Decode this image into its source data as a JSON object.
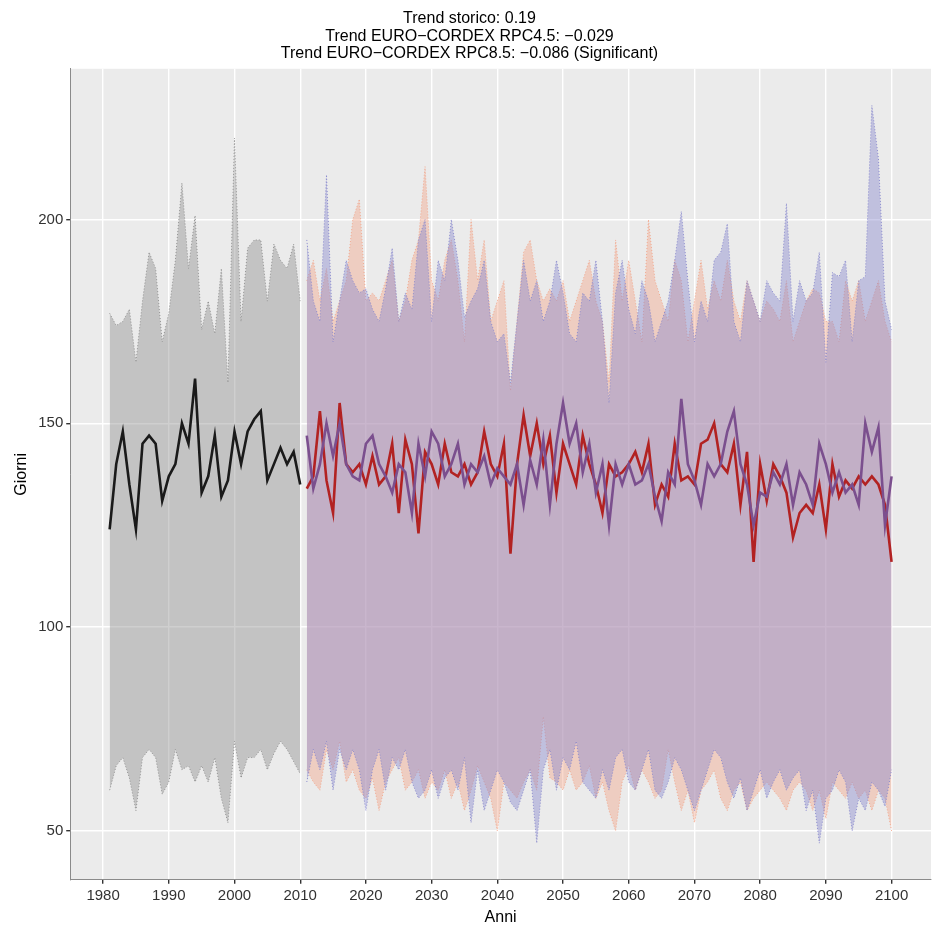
{
  "chart_data": {
    "type": "line",
    "title": [
      "Trend storico: 0.19",
      "Trend EURO−CORDEX RPC4.5: −0.029",
      "Trend EURO−CORDEX RPC8.5: −0.086 (Significant)"
    ],
    "xlabel": "Anni",
    "ylabel": "Giorni",
    "xlim": [
      1975,
      2106
    ],
    "xticks": [
      1980,
      1990,
      2000,
      2010,
      2020,
      2030,
      2040,
      2050,
      2060,
      2070,
      2080,
      2090,
      2100
    ],
    "ylim": [
      38,
      237
    ],
    "yticks": [
      50,
      100,
      150,
      200
    ],
    "grid": true,
    "series": [
      {
        "type": "area",
        "color": "#8c8c8c",
        "x": [
          1981,
          1982,
          1983,
          1984,
          1985,
          1986,
          1987,
          1988,
          1989,
          1990,
          1991,
          1992,
          1993,
          1994,
          1995,
          1996,
          1997,
          1998,
          1999,
          2000,
          2001,
          2002,
          2003,
          2004,
          2005,
          2006,
          2007,
          2008,
          2009,
          2010
        ],
        "lower": [
          60,
          66,
          68,
          63,
          55,
          68,
          70,
          68,
          59,
          62,
          70,
          65,
          66,
          62,
          66,
          62,
          68,
          58,
          52,
          72,
          63,
          68,
          68,
          70,
          65,
          69,
          72,
          70,
          67,
          64
        ],
        "upper": [
          177,
          174,
          175,
          178,
          165,
          180,
          192,
          188,
          170,
          177,
          190,
          209,
          188,
          201,
          173,
          180,
          172,
          188,
          160,
          220,
          175,
          193,
          195,
          195,
          180,
          194,
          190,
          188,
          194,
          180
        ]
      },
      {
        "type": "area",
        "color": "#8585cc",
        "x": [
          2011,
          2012,
          2013,
          2014,
          2015,
          2016,
          2017,
          2018,
          2019,
          2020,
          2021,
          2022,
          2023,
          2024,
          2025,
          2026,
          2027,
          2028,
          2029,
          2030,
          2031,
          2032,
          2033,
          2034,
          2035,
          2036,
          2037,
          2038,
          2039,
          2040,
          2041,
          2042,
          2043,
          2044,
          2045,
          2046,
          2047,
          2048,
          2049,
          2050,
          2051,
          2052,
          2053,
          2054,
          2055,
          2056,
          2057,
          2058,
          2059,
          2060,
          2061,
          2062,
          2063,
          2064,
          2065,
          2066,
          2067,
          2068,
          2069,
          2070,
          2071,
          2072,
          2073,
          2074,
          2075,
          2076,
          2077,
          2078,
          2079,
          2080,
          2081,
          2082,
          2083,
          2084,
          2085,
          2086,
          2087,
          2088,
          2089,
          2090,
          2091,
          2092,
          2093,
          2094,
          2095,
          2096,
          2097,
          2098,
          2099,
          2100
        ],
        "lower": [
          62,
          70,
          65,
          72,
          60,
          70,
          65,
          70,
          65,
          55,
          65,
          70,
          60,
          68,
          65,
          70,
          62,
          58,
          60,
          65,
          58,
          63,
          65,
          60,
          68,
          52,
          65,
          55,
          60,
          65,
          62,
          57,
          55,
          60,
          65,
          47,
          65,
          70,
          60,
          68,
          65,
          72,
          62,
          60,
          58,
          65,
          60,
          68,
          70,
          62,
          60,
          65,
          70,
          60,
          58,
          62,
          68,
          65,
          60,
          55,
          60,
          65,
          70,
          68,
          62,
          58,
          63,
          55,
          60,
          65,
          58,
          62,
          65,
          60,
          63,
          65,
          55,
          60,
          47,
          58,
          60,
          65,
          62,
          50,
          58,
          55,
          62,
          60,
          56,
          65
        ],
        "upper": [
          195,
          180,
          175,
          211,
          170,
          180,
          190,
          185,
          182,
          183,
          178,
          175,
          183,
          193,
          175,
          182,
          178,
          195,
          200,
          175,
          190,
          185,
          200,
          190,
          176,
          180,
          183,
          190,
          175,
          170,
          172,
          160,
          175,
          190,
          180,
          185,
          175,
          180,
          190,
          182,
          172,
          170,
          182,
          180,
          190,
          175,
          155,
          182,
          190,
          178,
          172,
          185,
          180,
          170,
          175,
          180,
          190,
          202,
          185,
          170,
          180,
          175,
          190,
          192,
          199,
          175,
          170,
          185,
          180,
          175,
          185,
          182,
          180,
          204,
          175,
          185,
          180,
          182,
          192,
          165,
          187,
          186,
          190,
          170,
          185,
          186,
          228,
          215,
          180,
          173
        ]
      },
      {
        "type": "area",
        "color": "#f2a488",
        "x": [
          2011,
          2012,
          2013,
          2014,
          2015,
          2016,
          2017,
          2018,
          2019,
          2020,
          2021,
          2022,
          2023,
          2024,
          2025,
          2026,
          2027,
          2028,
          2029,
          2030,
          2031,
          2032,
          2033,
          2034,
          2035,
          2036,
          2037,
          2038,
          2039,
          2040,
          2041,
          2042,
          2043,
          2044,
          2045,
          2046,
          2047,
          2048,
          2049,
          2050,
          2051,
          2052,
          2053,
          2054,
          2055,
          2056,
          2057,
          2058,
          2059,
          2060,
          2061,
          2062,
          2063,
          2064,
          2065,
          2066,
          2067,
          2068,
          2069,
          2070,
          2071,
          2072,
          2073,
          2074,
          2075,
          2076,
          2077,
          2078,
          2079,
          2080,
          2081,
          2082,
          2083,
          2084,
          2085,
          2086,
          2087,
          2088,
          2089,
          2090,
          2091,
          2092,
          2093,
          2094,
          2095,
          2096,
          2097,
          2098,
          2099,
          2100
        ],
        "lower": [
          65,
          62,
          60,
          70,
          65,
          72,
          62,
          65,
          60,
          58,
          63,
          55,
          62,
          65,
          68,
          60,
          62,
          65,
          58,
          62,
          60,
          65,
          58,
          62,
          55,
          60,
          66,
          62,
          58,
          50,
          62,
          60,
          58,
          62,
          65,
          60,
          78,
          63,
          62,
          60,
          65,
          60,
          62,
          66,
          58,
          62,
          55,
          50,
          62,
          66,
          60,
          65,
          62,
          58,
          60,
          70,
          62,
          55,
          60,
          52,
          60,
          62,
          65,
          58,
          55,
          60,
          62,
          55,
          58,
          60,
          62,
          60,
          58,
          55,
          60,
          62,
          60,
          55,
          60,
          53,
          62,
          60,
          58,
          62,
          58,
          60,
          55,
          60,
          58,
          50
        ],
        "upper": [
          185,
          190,
          180,
          188,
          175,
          180,
          185,
          200,
          205,
          180,
          182,
          180,
          185,
          190,
          175,
          180,
          190,
          195,
          213,
          185,
          180,
          190,
          195,
          185,
          170,
          200,
          185,
          195,
          175,
          180,
          185,
          158,
          175,
          192,
          195,
          185,
          180,
          183,
          180,
          185,
          175,
          180,
          185,
          190,
          180,
          175,
          160,
          195,
          180,
          190,
          180,
          170,
          200,
          185,
          180,
          175,
          190,
          185,
          170,
          180,
          190,
          178,
          185,
          180,
          190,
          180,
          175,
          185,
          180,
          175,
          180,
          178,
          175,
          185,
          170,
          175,
          180,
          183,
          182,
          175,
          175,
          170,
          185,
          180,
          185,
          175,
          180,
          185,
          175,
          170
        ]
      },
      {
        "type": "line",
        "color": "#1a1a1a",
        "x": [
          1981,
          1982,
          1983,
          1984,
          1985,
          1986,
          1987,
          1988,
          1989,
          1990,
          1991,
          1992,
          1993,
          1994,
          1995,
          1996,
          1997,
          1998,
          1999,
          2000,
          2001,
          2002,
          2003,
          2004,
          2005,
          2006,
          2007,
          2008,
          2009,
          2010
        ],
        "values": [
          124,
          140,
          148,
          135,
          124,
          145,
          147,
          145,
          131,
          137,
          140,
          150,
          145,
          161,
          133,
          137,
          147,
          132,
          136,
          148,
          140,
          148,
          151,
          153,
          136,
          140,
          144,
          140,
          143,
          135
        ]
      },
      {
        "type": "line",
        "color": "#7b4f8e",
        "x": [
          2011,
          2012,
          2013,
          2014,
          2015,
          2016,
          2017,
          2018,
          2019,
          2020,
          2021,
          2022,
          2023,
          2024,
          2025,
          2026,
          2027,
          2028,
          2029,
          2030,
          2031,
          2032,
          2033,
          2034,
          2035,
          2036,
          2037,
          2038,
          2039,
          2040,
          2041,
          2042,
          2043,
          2044,
          2045,
          2046,
          2047,
          2048,
          2049,
          2050,
          2051,
          2052,
          2053,
          2054,
          2055,
          2056,
          2057,
          2058,
          2059,
          2060,
          2061,
          2062,
          2063,
          2064,
          2065,
          2066,
          2067,
          2068,
          2069,
          2070,
          2071,
          2072,
          2073,
          2074,
          2075,
          2076,
          2077,
          2078,
          2079,
          2080,
          2081,
          2082,
          2083,
          2084,
          2085,
          2086,
          2087,
          2088,
          2089,
          2090,
          2091,
          2092,
          2093,
          2094,
          2095,
          2096,
          2097,
          2098,
          2099,
          2100
        ],
        "values": [
          147,
          134,
          140,
          150,
          142,
          150,
          140,
          137,
          136,
          145,
          147,
          140,
          137,
          133,
          140,
          138,
          128,
          145,
          137,
          148,
          145,
          137,
          140,
          145,
          135,
          140,
          138,
          142,
          135,
          139,
          137,
          135,
          140,
          130,
          141,
          135,
          146,
          130,
          145,
          155,
          145,
          150,
          138,
          145,
          133,
          140,
          125,
          140,
          135,
          140,
          135,
          136,
          140,
          132,
          126,
          138,
          135,
          156,
          140,
          136,
          130,
          140,
          137,
          140,
          148,
          153,
          140,
          135,
          125,
          133,
          132,
          138,
          135,
          140,
          130,
          138,
          135,
          130,
          145,
          140,
          133,
          138,
          133,
          135,
          130,
          150,
          143,
          149,
          125,
          137
        ]
      },
      {
        "type": "line",
        "color": "#b22222",
        "x": [
          2011,
          2012,
          2013,
          2014,
          2015,
          2016,
          2017,
          2018,
          2019,
          2020,
          2021,
          2022,
          2023,
          2024,
          2025,
          2026,
          2027,
          2028,
          2029,
          2030,
          2031,
          2032,
          2033,
          2034,
          2035,
          2036,
          2037,
          2038,
          2039,
          2040,
          2041,
          2042,
          2043,
          2044,
          2045,
          2046,
          2047,
          2048,
          2049,
          2050,
          2051,
          2052,
          2053,
          2054,
          2055,
          2056,
          2057,
          2058,
          2059,
          2060,
          2061,
          2062,
          2063,
          2064,
          2065,
          2066,
          2067,
          2068,
          2069,
          2070,
          2071,
          2072,
          2073,
          2074,
          2075,
          2076,
          2077,
          2078,
          2079,
          2080,
          2081,
          2082,
          2083,
          2084,
          2085,
          2086,
          2087,
          2088,
          2089,
          2090,
          2091,
          2092,
          2093,
          2094,
          2095,
          2096,
          2097,
          2098,
          2099,
          2100
        ],
        "values": [
          134,
          137,
          153,
          136,
          128,
          155,
          140,
          138,
          140,
          135,
          142,
          135,
          137,
          145,
          128,
          146,
          140,
          123,
          143,
          140,
          135,
          145,
          138,
          137,
          140,
          135,
          138,
          148,
          140,
          137,
          145,
          118,
          140,
          152,
          142,
          150,
          140,
          147,
          133,
          145,
          140,
          135,
          147,
          140,
          135,
          128,
          140,
          137,
          138,
          140,
          143,
          138,
          145,
          130,
          135,
          132,
          145,
          136,
          137,
          135,
          145,
          146,
          150,
          140,
          138,
          145,
          130,
          143,
          116,
          140,
          131,
          140,
          137,
          133,
          122,
          128,
          130,
          128,
          135,
          124,
          140,
          132,
          136,
          134,
          137,
          135,
          137,
          135,
          130,
          116
        ]
      }
    ]
  }
}
